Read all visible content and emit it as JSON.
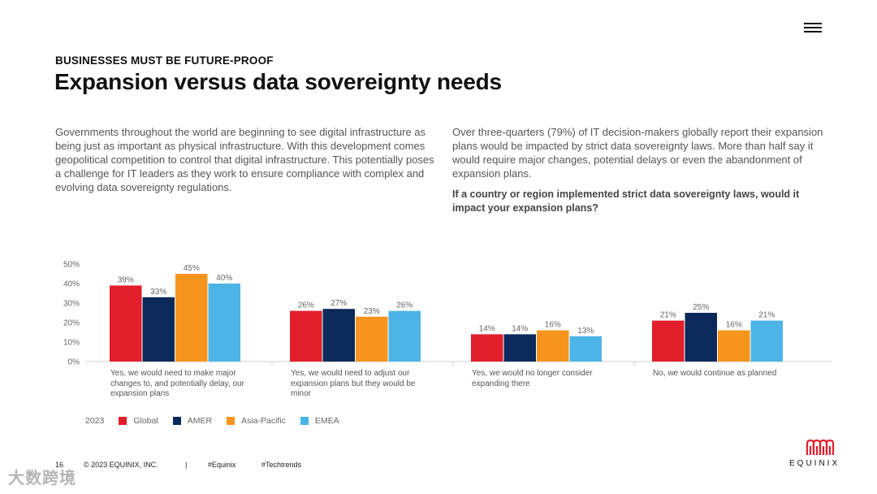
{
  "header": {
    "eyebrow": "BUSINESSES MUST BE FUTURE-PROOF",
    "title": "Expansion versus data sovereignty needs"
  },
  "body": {
    "left_paragraph": "Governments throughout the world are beginning to see digital infrastructure as being just as important as physical infrastructure. With this development comes geopolitical competition to control that digital infrastructure. This potentially poses a challenge for IT leaders as they work to ensure compliance with complex and evolving data sovereignty regulations.",
    "right_paragraph": "Over three-quarters (79%) of IT decision-makers globally report their expansion plans would be impacted by strict data sovereignty laws. More than half say it would require major changes, potential delays or even the abandonment of expansion plans.",
    "question": "If a country or region implemented strict data sovereignty laws, would it impact your expansion plans?"
  },
  "chart_data": {
    "type": "bar",
    "categories": [
      "Yes, we would need to make major changes to, and potentially delay, our expansion plans",
      "Yes, we would need to adjust our expansion plans but they would be minor",
      "Yes, we would no longer consider expanding there",
      "No, we would continue as planned"
    ],
    "series": [
      {
        "name": "Global",
        "color": "#e31e2b",
        "values": [
          39,
          26,
          14,
          21
        ]
      },
      {
        "name": "AMER",
        "color": "#0b2a5b",
        "values": [
          33,
          27,
          14,
          25
        ]
      },
      {
        "name": "Asia-Pacific",
        "color": "#f7941d",
        "values": [
          45,
          23,
          16,
          16
        ]
      },
      {
        "name": "EMEA",
        "color": "#4cb4e6",
        "values": [
          40,
          26,
          13,
          21
        ]
      }
    ],
    "ylim": [
      0,
      50
    ],
    "yticks": [
      "0%",
      "10%",
      "20%",
      "30%",
      "40%",
      "50%"
    ],
    "legend_title": "2023",
    "value_suffix": "%"
  },
  "footer": {
    "page_number": "16",
    "copyright": "© 2023 EQUINIX, INC.",
    "separator": "|",
    "hashtag1": "#Equinix",
    "hashtag2": "#Techtrends"
  },
  "logo": {
    "text": "EQUINIX"
  },
  "watermark": {
    "text": "大数跨境"
  }
}
